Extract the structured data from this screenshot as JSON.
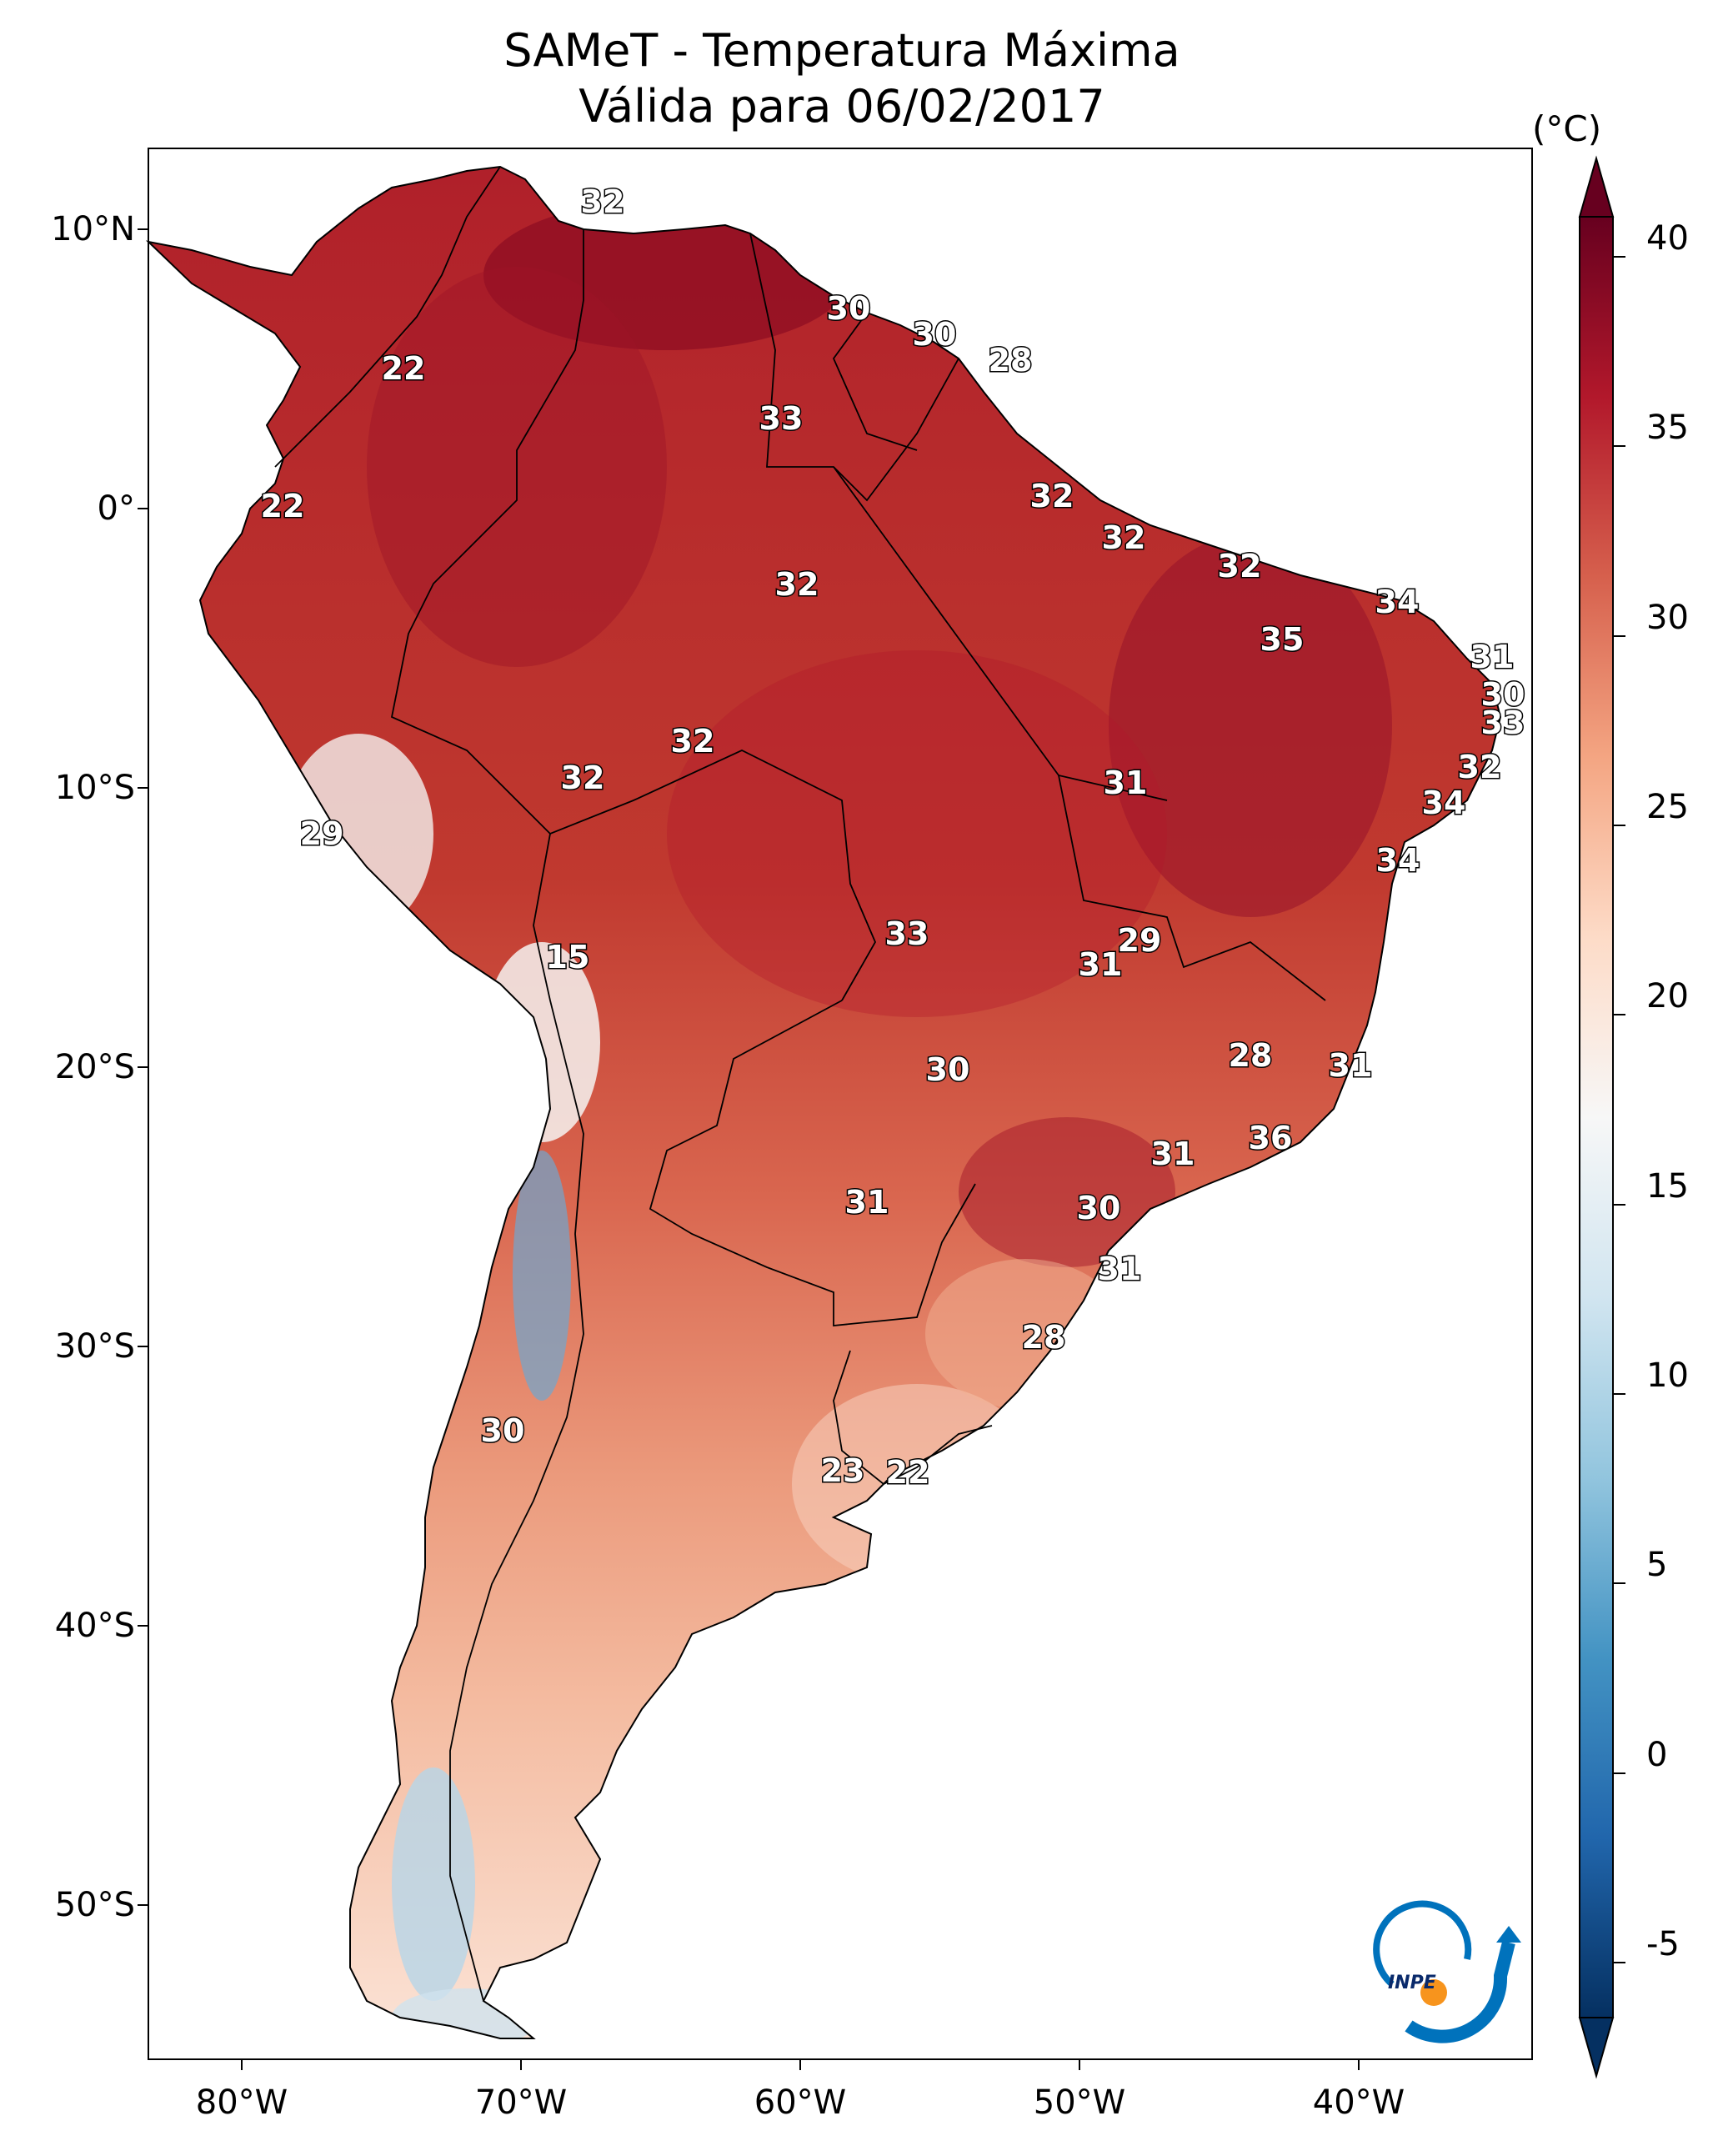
{
  "title_line1": "SAMeT - Temperatura Máxima",
  "title_line2": "Válida para 06/02/2017",
  "lat_labels": [
    "10°N",
    "0°",
    "10°S",
    "20°S",
    "30°S",
    "40°S",
    "50°S"
  ],
  "lon_labels": [
    "80°W",
    "70°W",
    "60°W",
    "50°W",
    "40°W"
  ],
  "colorbar": {
    "unit": "(°C)",
    "min": -7.5,
    "max": 40,
    "ticks": [
      "40",
      "35",
      "30",
      "25",
      "20",
      "15",
      "10",
      "5",
      "0",
      "-5"
    ],
    "colors": [
      "#053061",
      "#2166ac",
      "#4393c3",
      "#92c5de",
      "#d1e5f0",
      "#f7f7f7",
      "#fddbc7",
      "#f4a582",
      "#d6604d",
      "#b2182b",
      "#67001f"
    ]
  },
  "station_labels": [
    "32",
    "30",
    "30",
    "28",
    "22",
    "33",
    "22",
    "32",
    "32",
    "32",
    "32",
    "34",
    "35",
    "31",
    "30",
    "33",
    "32",
    "32",
    "32",
    "29",
    "31",
    "34",
    "34",
    "15",
    "33",
    "29",
    "31",
    "30",
    "28",
    "31",
    "36",
    "31",
    "31",
    "30",
    "31",
    "28",
    "30",
    "23",
    "22"
  ],
  "logo": {
    "text": "INPE",
    "ring_color": "#0072bc",
    "dot_color": "#f7941d"
  }
}
